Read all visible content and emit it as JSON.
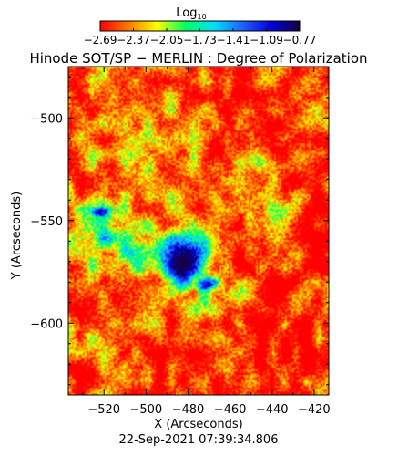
{
  "chart_data": {
    "type": "heatmap",
    "title": "Hinode SOT/SP − MERLIN : Degree of Polarization",
    "xlabel": "X (Arcseconds)",
    "ylabel": "Y (Arcseconds)",
    "xlim": [
      -537,
      -413
    ],
    "ylim": [
      -635,
      -475
    ],
    "xticks": [
      -520,
      -500,
      -480,
      -460,
      -440,
      -420
    ],
    "xtick_labels": [
      "−520",
      "−500",
      "−480",
      "−460",
      "−440",
      "−420"
    ],
    "yticks": [
      -500,
      -550,
      -600
    ],
    "ytick_labels": [
      "−500",
      "−550",
      "−600"
    ],
    "timestamp": "22-Sep-2021 07:39:34.806",
    "colorbar": {
      "label": "Log",
      "label_subscript": "10",
      "range": [
        -2.69,
        -0.77
      ],
      "ticks": [
        -2.69,
        -2.37,
        -2.05,
        -1.73,
        -1.41,
        -1.09,
        -0.77
      ],
      "tick_labels": [
        "−2.69",
        "−2.37",
        "−2.05",
        "−1.73",
        "−1.41",
        "−1.09",
        "−0.77"
      ],
      "colors": [
        "#ff0000",
        "#ff7a00",
        "#ffff00",
        "#00ff60",
        "#00e0ff",
        "#2060ff",
        "#0000e0",
        "#140040"
      ]
    },
    "background_level": -2.6,
    "features": [
      {
        "center": [
          -482,
          -570
        ],
        "radius": [
          11,
          16
        ],
        "peak": -0.9
      },
      {
        "center": [
          -472,
          -581
        ],
        "radius": [
          6,
          4
        ],
        "peak": -1.0
      },
      {
        "center": [
          -522,
          -546
        ],
        "radius": [
          6,
          3
        ],
        "peak": -1.2
      },
      {
        "center": [
          -506,
          -565
        ],
        "radius": [
          28,
          20
        ],
        "peak": -2.0
      },
      {
        "center": [
          -522,
          -555
        ],
        "radius": [
          15,
          20
        ],
        "peak": -1.8
      },
      {
        "center": [
          -500,
          -510
        ],
        "radius": [
          30,
          25
        ],
        "peak": -2.3
      },
      {
        "center": [
          -480,
          -583
        ],
        "radius": [
          24,
          12
        ],
        "peak": -2.0
      },
      {
        "center": [
          -448,
          -520
        ],
        "radius": [
          8,
          6
        ],
        "peak": -1.8
      },
      {
        "center": [
          -440,
          -545
        ],
        "radius": [
          10,
          12
        ],
        "peak": -2.2
      },
      {
        "center": [
          -520,
          -610
        ],
        "radius": [
          15,
          8
        ],
        "peak": -2.3
      }
    ]
  }
}
